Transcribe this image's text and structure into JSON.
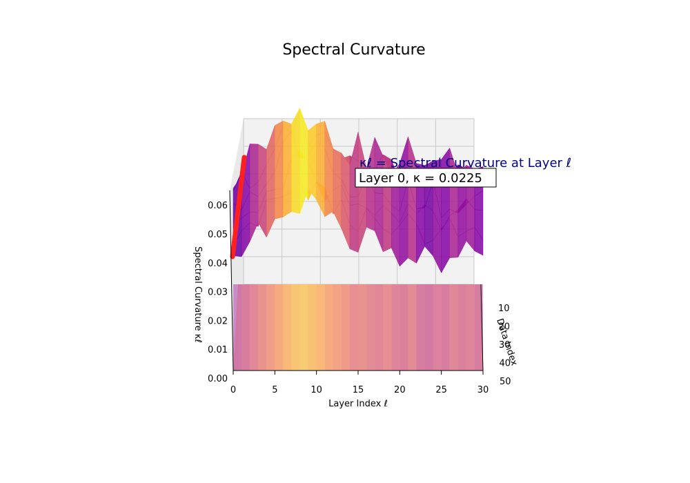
{
  "chart_data": {
    "type": "surface3d",
    "title": "Spectral Curvature",
    "xlabel": "Layer Index ℓ",
    "ylabel": "Data Index",
    "zlabel": "Spectral Curvature κℓ",
    "xlim": [
      0,
      30
    ],
    "ylim": [
      0,
      50
    ],
    "zlim": [
      0,
      0.065
    ],
    "x_ticks": [
      "0",
      "5",
      "10",
      "15",
      "20",
      "25",
      "30"
    ],
    "y_ticks": [
      "10",
      "20",
      "30",
      "40",
      "50"
    ],
    "z_ticks": [
      "0.00",
      "0.01",
      "0.02",
      "0.03",
      "0.04",
      "0.05",
      "0.06"
    ],
    "colormap": "plasma",
    "layers": [
      0,
      1,
      2,
      3,
      4,
      5,
      6,
      7,
      8,
      9,
      10,
      11,
      12,
      13,
      14,
      15,
      16,
      17,
      18,
      19,
      20,
      21,
      22,
      23,
      24,
      25,
      26,
      27,
      28,
      29,
      30
    ],
    "mean_curvature": [
      0.038,
      0.04,
      0.043,
      0.046,
      0.049,
      0.052,
      0.055,
      0.058,
      0.059,
      0.057,
      0.055,
      0.052,
      0.05,
      0.048,
      0.045,
      0.046,
      0.044,
      0.043,
      0.045,
      0.042,
      0.041,
      0.044,
      0.04,
      0.039,
      0.041,
      0.04,
      0.043,
      0.041,
      0.042,
      0.04,
      0.041
    ],
    "highlight_series": {
      "layer": 0,
      "color": "#ff2020",
      "z_range": [
        0.042,
        0.068
      ]
    },
    "grid": true
  },
  "annotations": {
    "definition": "κℓ = Spectral Curvature at Layer ℓ",
    "current": "Layer 0, κ = 0.0225"
  }
}
